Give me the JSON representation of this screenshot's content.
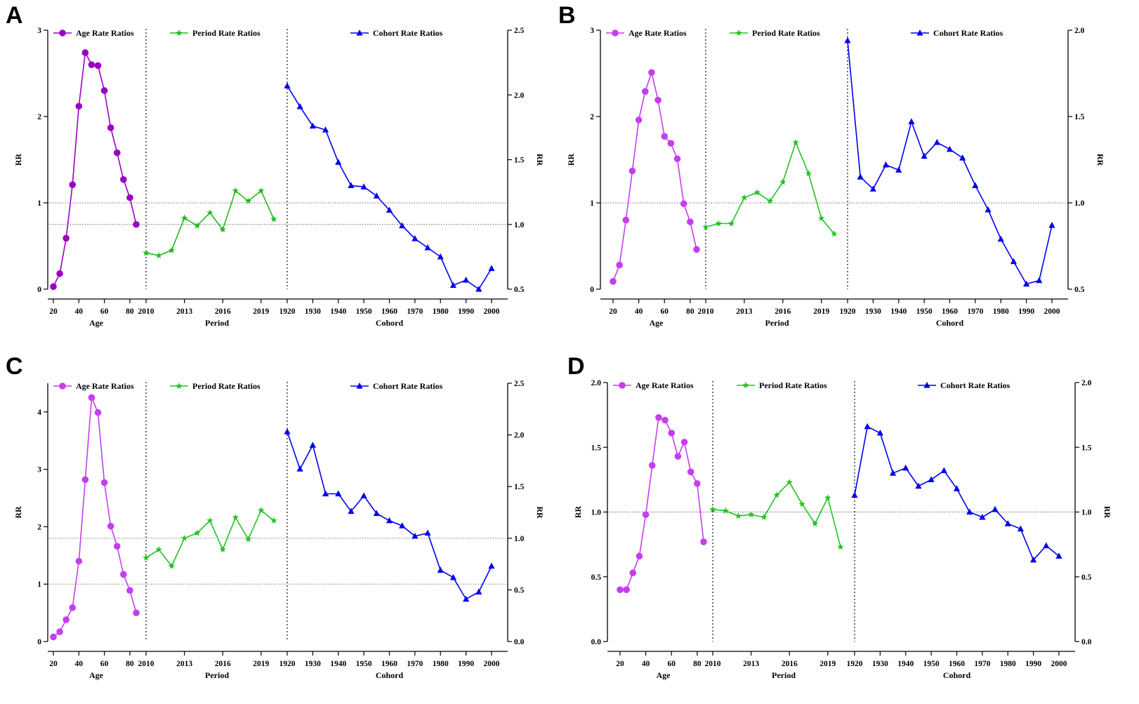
{
  "chart_data": [
    {
      "panel": "A",
      "type": "line",
      "left_axis": {
        "label": "RR",
        "ylim": [
          0,
          3
        ],
        "ticks": [
          "0",
          "1",
          "2",
          "3"
        ]
      },
      "right_axis": {
        "label": "RR",
        "ylim": [
          0.5,
          2.5
        ],
        "ticks": [
          "0.5",
          "1.0",
          "1.5",
          "2.0",
          "2.5"
        ]
      },
      "ref_lines": [
        {
          "axis": "left",
          "value": 1
        },
        {
          "axis": "right",
          "value": 1.0
        }
      ],
      "age": {
        "xlabel": "Age",
        "tick_labels": [
          "20",
          "40",
          "60",
          "80"
        ],
        "legend": "Age Rate Ratios",
        "color": "#9b00c2",
        "x": [
          20,
          25,
          30,
          35,
          40,
          45,
          50,
          55,
          60,
          65,
          70,
          75,
          80,
          85
        ],
        "values": [
          0.03,
          0.18,
          0.59,
          1.21,
          2.12,
          2.74,
          2.6,
          2.59,
          2.3,
          1.87,
          1.58,
          1.27,
          1.06,
          0.75
        ]
      },
      "period": {
        "xlabel": "Period",
        "tick_labels": [
          "2010",
          "2013",
          "2016",
          "2019"
        ],
        "legend": "Period Rate Ratios",
        "color": "#22b822",
        "x": [
          2010,
          2011,
          2012,
          2013,
          2014,
          2015,
          2016,
          2017,
          2018,
          2019,
          2020
        ],
        "values": [
          0.78,
          0.76,
          0.8,
          1.05,
          0.99,
          1.09,
          0.96,
          1.26,
          1.18,
          1.26,
          1.04
        ]
      },
      "cohort": {
        "xlabel": "Cohord",
        "tick_labels": [
          "1920",
          "1930",
          "1940",
          "1950",
          "1960",
          "1970",
          "1980",
          "1990",
          "2000"
        ],
        "legend": "Cohort Rate Ratios",
        "color": "#0000ee",
        "x": [
          1920,
          1925,
          1930,
          1935,
          1940,
          1945,
          1950,
          1955,
          1960,
          1965,
          1970,
          1975,
          1980,
          1985,
          1990,
          1995,
          2000
        ],
        "values": [
          2.07,
          1.91,
          1.76,
          1.73,
          1.48,
          1.3,
          1.29,
          1.22,
          1.11,
          0.99,
          0.89,
          0.82,
          0.75,
          0.53,
          0.57,
          0.5,
          0.66
        ]
      }
    },
    {
      "panel": "B",
      "type": "line",
      "left_axis": {
        "label": "RR",
        "ylim": [
          0,
          3
        ],
        "ticks": [
          "0",
          "1",
          "2",
          "3"
        ]
      },
      "right_axis": {
        "label": "RR",
        "ylim": [
          0.5,
          2.0
        ],
        "ticks": [
          "0.5",
          "1.0",
          "1.5",
          "2.0"
        ]
      },
      "ref_lines": [
        {
          "axis": "left",
          "value": 1
        }
      ],
      "age": {
        "xlabel": "Age",
        "tick_labels": [
          "20",
          "40",
          "60",
          "80"
        ],
        "legend": "Age Rate Ratios",
        "color": "#c43ef0",
        "x": [
          20,
          25,
          30,
          35,
          40,
          45,
          50,
          55,
          60,
          65,
          70,
          75,
          80,
          85
        ],
        "values": [
          0.09,
          0.28,
          0.8,
          1.37,
          1.96,
          2.29,
          2.51,
          2.19,
          1.77,
          1.69,
          1.51,
          0.99,
          0.78,
          0.46
        ]
      },
      "period": {
        "xlabel": "Period",
        "tick_labels": [
          "2010",
          "2013",
          "2016",
          "2019"
        ],
        "legend": "Period Rate Ratios",
        "color": "#22c322",
        "x": [
          2010,
          2011,
          2012,
          2013,
          2014,
          2015,
          2016,
          2017,
          2018,
          2019,
          2020
        ],
        "values": [
          0.86,
          0.88,
          0.88,
          1.03,
          1.06,
          1.01,
          1.12,
          1.35,
          1.17,
          0.91,
          0.82
        ]
      },
      "cohort": {
        "xlabel": "Cohord",
        "tick_labels": [
          "1920",
          "1930",
          "1940",
          "1950",
          "1960",
          "1970",
          "1980",
          "1990",
          "2000"
        ],
        "legend": "Cohort Rate Ratios",
        "color": "#0000ee",
        "x": [
          1920,
          1925,
          1930,
          1935,
          1940,
          1945,
          1950,
          1955,
          1960,
          1965,
          1970,
          1975,
          1980,
          1985,
          1990,
          1995,
          2000
        ],
        "values": [
          1.94,
          1.15,
          1.08,
          1.22,
          1.19,
          1.47,
          1.27,
          1.35,
          1.31,
          1.26,
          1.1,
          0.96,
          0.79,
          0.66,
          0.53,
          0.55,
          0.87
        ]
      }
    },
    {
      "panel": "C",
      "type": "line",
      "left_axis": {
        "label": "RR",
        "ylim": [
          0,
          4.5
        ],
        "ticks": [
          "0",
          "1",
          "2",
          "3",
          "4"
        ]
      },
      "right_axis": {
        "label": "RR",
        "ylim": [
          0.0,
          2.5
        ],
        "ticks": [
          "0.0",
          "0.5",
          "1.0",
          "1.5",
          "2.0",
          "2.5"
        ]
      },
      "ref_lines": [
        {
          "axis": "left",
          "value": 1
        },
        {
          "axis": "right",
          "value": 1.0
        }
      ],
      "age": {
        "xlabel": "Age",
        "tick_labels": [
          "20",
          "40",
          "60",
          "80"
        ],
        "legend": "Age Rate Ratios",
        "color": "#c43ef0",
        "x": [
          20,
          25,
          30,
          35,
          40,
          45,
          50,
          55,
          60,
          65,
          70,
          75,
          80,
          85
        ],
        "values": [
          0.08,
          0.17,
          0.38,
          0.59,
          1.4,
          2.82,
          4.25,
          3.99,
          2.77,
          2.01,
          1.66,
          1.17,
          0.89,
          0.5
        ]
      },
      "period": {
        "xlabel": "Period",
        "tick_labels": [
          "2010",
          "2013",
          "2016",
          "2019"
        ],
        "legend": "Period Rate Ratios",
        "color": "#22c322",
        "x": [
          2010,
          2011,
          2012,
          2013,
          2014,
          2015,
          2016,
          2017,
          2018,
          2019,
          2020
        ],
        "values": [
          0.81,
          0.89,
          0.73,
          1.0,
          1.05,
          1.17,
          0.89,
          1.2,
          0.99,
          1.27,
          1.17
        ]
      },
      "cohort": {
        "xlabel": "Cohord",
        "tick_labels": [
          "1920",
          "1930",
          "1940",
          "1950",
          "1960",
          "1970",
          "1980",
          "1990",
          "2000"
        ],
        "legend": "Cohort Rate Ratios",
        "color": "#0000ee",
        "x": [
          1920,
          1925,
          1930,
          1935,
          1940,
          1945,
          1950,
          1955,
          1960,
          1965,
          1970,
          1975,
          1980,
          1985,
          1990,
          1995,
          2000
        ],
        "values": [
          2.03,
          1.67,
          1.9,
          1.43,
          1.43,
          1.26,
          1.41,
          1.24,
          1.17,
          1.12,
          1.02,
          1.05,
          0.69,
          0.62,
          0.41,
          0.48,
          0.73
        ]
      }
    },
    {
      "panel": "D",
      "type": "line",
      "left_axis": {
        "label": "RR",
        "ylim": [
          0,
          2.0
        ],
        "ticks": [
          "0.0",
          "0.5",
          "1.0",
          "1.5",
          "2.0"
        ]
      },
      "right_axis": {
        "label": "RR",
        "ylim": [
          0.0,
          2.0
        ],
        "ticks": [
          "0.0",
          "0.5",
          "1.0",
          "1.5",
          "2.0"
        ]
      },
      "ref_lines": [
        {
          "axis": "left",
          "value": 1.0
        }
      ],
      "age": {
        "xlabel": "Age",
        "tick_labels": [
          "20",
          "40",
          "60",
          "80"
        ],
        "legend": "Age Rate Ratios",
        "color": "#c43ef0",
        "x": [
          20,
          25,
          30,
          35,
          40,
          45,
          50,
          55,
          60,
          65,
          70,
          75,
          80,
          85
        ],
        "values": [
          0.4,
          0.4,
          0.53,
          0.66,
          0.98,
          1.36,
          1.73,
          1.71,
          1.61,
          1.43,
          1.54,
          1.31,
          1.22,
          0.77
        ]
      },
      "period": {
        "xlabel": "Period",
        "tick_labels": [
          "2010",
          "2013",
          "2016",
          "2019"
        ],
        "legend": "Period Rate Ratios",
        "color": "#22c322",
        "x": [
          2010,
          2011,
          2012,
          2013,
          2014,
          2015,
          2016,
          2017,
          2018,
          2019,
          2020
        ],
        "values": [
          1.02,
          1.01,
          0.97,
          0.98,
          0.96,
          1.13,
          1.23,
          1.06,
          0.91,
          1.11,
          0.73
        ]
      },
      "cohort": {
        "xlabel": "Cohord",
        "tick_labels": [
          "1920",
          "1930",
          "1940",
          "1950",
          "1960",
          "1970",
          "1980",
          "1990",
          "2000"
        ],
        "legend": "Cohort Rate Ratios",
        "color": "#0000ee",
        "x": [
          1920,
          1925,
          1930,
          1935,
          1940,
          1945,
          1950,
          1955,
          1960,
          1965,
          1970,
          1975,
          1980,
          1985,
          1990,
          1995,
          2000
        ],
        "values": [
          1.13,
          1.66,
          1.61,
          1.3,
          1.34,
          1.2,
          1.25,
          1.32,
          1.18,
          1.0,
          0.96,
          1.02,
          0.91,
          0.87,
          0.63,
          0.74,
          0.66
        ]
      }
    }
  ]
}
